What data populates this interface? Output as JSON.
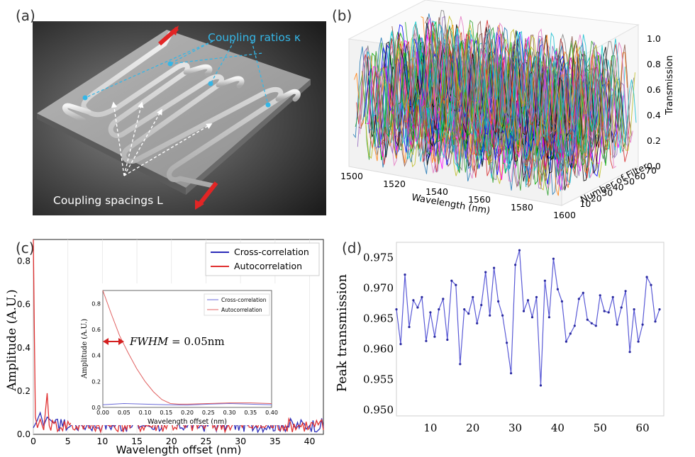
{
  "panels": {
    "a": {
      "label": "(a)",
      "annotation_top": "Coupling ratios κ",
      "annotation_bottom": "Coupling spacings L"
    },
    "b": {
      "label": "(b)"
    },
    "c": {
      "label": "(c)"
    },
    "d": {
      "label": "(d)"
    }
  },
  "colors": {
    "blue_series": "#2b2bb8",
    "red_series": "#e03030",
    "annotation_cyan": "#35b6e6",
    "point_blue": "#5a5ad6"
  },
  "chart_data": [
    {
      "id": "b",
      "type": "line3d",
      "x_label": "Wavelength (nm)",
      "x_ticks": [
        "1500",
        "1520",
        "1540",
        "1560",
        "1580",
        "1600"
      ],
      "y_label": "Number of Filter",
      "y_ticks": [
        "10",
        "20",
        "30",
        "40",
        "50",
        "60",
        "70"
      ],
      "z_label": "Transmission",
      "z_ticks": [
        "0.0",
        "0.2",
        "0.4",
        "0.6",
        "0.8",
        "1.0"
      ],
      "xlim": [
        1500,
        1600
      ],
      "ylim": [
        0,
        70
      ],
      "zlim": [
        0,
        1
      ],
      "series_count": 70
    },
    {
      "id": "c",
      "type": "line",
      "x_label": "Wavelength offset (nm)",
      "y_label": "Amplitude (A.U.)",
      "x_ticks": [
        "0",
        "5",
        "10",
        "15",
        "20",
        "25",
        "30",
        "35",
        "40"
      ],
      "y_ticks": [
        "0.0",
        "0.2",
        "0.4",
        "0.6",
        "0.8"
      ],
      "xlim": [
        0,
        42
      ],
      "ylim": [
        0,
        0.9
      ],
      "legend": [
        "Cross-correlation",
        "Autocorrelation"
      ],
      "series": [
        {
          "name": "Cross-correlation",
          "x": [
            0,
            0.5,
            1,
            1.5,
            2,
            3,
            4,
            5,
            6,
            7,
            8,
            9,
            10,
            12,
            14,
            16,
            18,
            20,
            22,
            24,
            26,
            28,
            30,
            32,
            34,
            36,
            38,
            40,
            42
          ],
          "values": [
            0.03,
            0.06,
            0.1,
            0.04,
            0.08,
            0.05,
            0.07,
            0.03,
            0.06,
            0.04,
            0.05,
            0.03,
            0.04,
            0.05,
            0.03,
            0.04,
            0.06,
            0.05,
            0.04,
            0.03,
            0.05,
            0.04,
            0.05,
            0.03,
            0.04,
            0.05,
            0.03,
            0.04,
            0.03
          ]
        },
        {
          "name": "Autocorrelation",
          "x": [
            0,
            0.15,
            0.3,
            0.6,
            1,
            1.5,
            2,
            2.3,
            3,
            4,
            5,
            6,
            7,
            8,
            10,
            12,
            15,
            18,
            20,
            22,
            25,
            28,
            30,
            33,
            36,
            40,
            42
          ],
          "values": [
            0.9,
            0.45,
            0.08,
            0.03,
            0.07,
            0.02,
            0.19,
            0.04,
            0.05,
            0.03,
            0.06,
            0.02,
            0.05,
            0.03,
            0.04,
            0.02,
            0.05,
            0.04,
            0.06,
            0.03,
            0.04,
            0.03,
            0.05,
            0.03,
            0.04,
            0.03,
            0.02
          ]
        }
      ],
      "inset": {
        "x_label": "Wavelength offset (nm)",
        "y_label": "Amplitude (A.U.)",
        "x_ticks": [
          "0.00",
          "0.05",
          "0.10",
          "0.15",
          "0.20",
          "0.25",
          "0.30",
          "0.35",
          "0.40"
        ],
        "y_ticks": [
          "0.0",
          "0.2",
          "0.4",
          "0.6",
          "0.8"
        ],
        "xlim": [
          0,
          0.4
        ],
        "ylim": [
          0,
          0.9
        ],
        "legend": [
          "Cross-correlation",
          "Autocorrelation"
        ],
        "annotation_lhs": "FWHM",
        "annotation_rhs": " = 0.05nm",
        "series": [
          {
            "name": "Cross-correlation",
            "x": [
              0,
              0.05,
              0.1,
              0.15,
              0.2,
              0.25,
              0.3,
              0.35,
              0.4
            ],
            "values": [
              0.02,
              0.03,
              0.025,
              0.02,
              0.018,
              0.025,
              0.03,
              0.025,
              0.02
            ]
          },
          {
            "name": "Autocorrelation",
            "x": [
              0,
              0.02,
              0.04,
              0.06,
              0.08,
              0.1,
              0.12,
              0.14,
              0.16,
              0.18,
              0.2,
              0.25,
              0.3,
              0.35,
              0.4
            ],
            "values": [
              0.9,
              0.72,
              0.55,
              0.42,
              0.3,
              0.2,
              0.12,
              0.06,
              0.03,
              0.025,
              0.025,
              0.03,
              0.035,
              0.035,
              0.03
            ]
          }
        ]
      }
    },
    {
      "id": "d",
      "type": "line",
      "y_label": "Peak transmission",
      "x_ticks": [
        "10",
        "20",
        "30",
        "40",
        "50",
        "60"
      ],
      "y_ticks": [
        "0.950",
        "0.955",
        "0.960",
        "0.965",
        "0.970",
        "0.975"
      ],
      "xlim": [
        2,
        65
      ],
      "ylim": [
        0.949,
        0.9775
      ],
      "x": [
        2,
        3,
        4,
        5,
        6,
        7,
        8,
        9,
        10,
        11,
        12,
        13,
        14,
        15,
        16,
        17,
        18,
        19,
        20,
        21,
        22,
        23,
        24,
        25,
        26,
        27,
        28,
        29,
        30,
        31,
        32,
        33,
        34,
        35,
        36,
        37,
        38,
        39,
        40,
        41,
        42,
        43,
        44,
        45,
        46,
        47,
        48,
        49,
        50,
        51,
        52,
        53,
        54,
        55,
        56,
        57,
        58,
        59,
        60,
        61,
        62,
        63,
        64
      ],
      "values": [
        0.9665,
        0.9608,
        0.9722,
        0.9636,
        0.968,
        0.9668,
        0.9685,
        0.9613,
        0.966,
        0.962,
        0.9665,
        0.9682,
        0.9615,
        0.9712,
        0.9705,
        0.9575,
        0.9665,
        0.9658,
        0.9685,
        0.9642,
        0.9672,
        0.9726,
        0.9655,
        0.9733,
        0.9678,
        0.9655,
        0.961,
        0.956,
        0.9738,
        0.9762,
        0.9662,
        0.968,
        0.9652,
        0.9685,
        0.954,
        0.9712,
        0.9652,
        0.9748,
        0.9698,
        0.9678,
        0.9612,
        0.9625,
        0.9638,
        0.9682,
        0.9692,
        0.9648,
        0.9642,
        0.9638,
        0.9688,
        0.9662,
        0.966,
        0.9685,
        0.964,
        0.9668,
        0.9695,
        0.9595,
        0.9665,
        0.9612,
        0.964,
        0.9718,
        0.9705,
        0.9645,
        0.9665
      ]
    }
  ]
}
